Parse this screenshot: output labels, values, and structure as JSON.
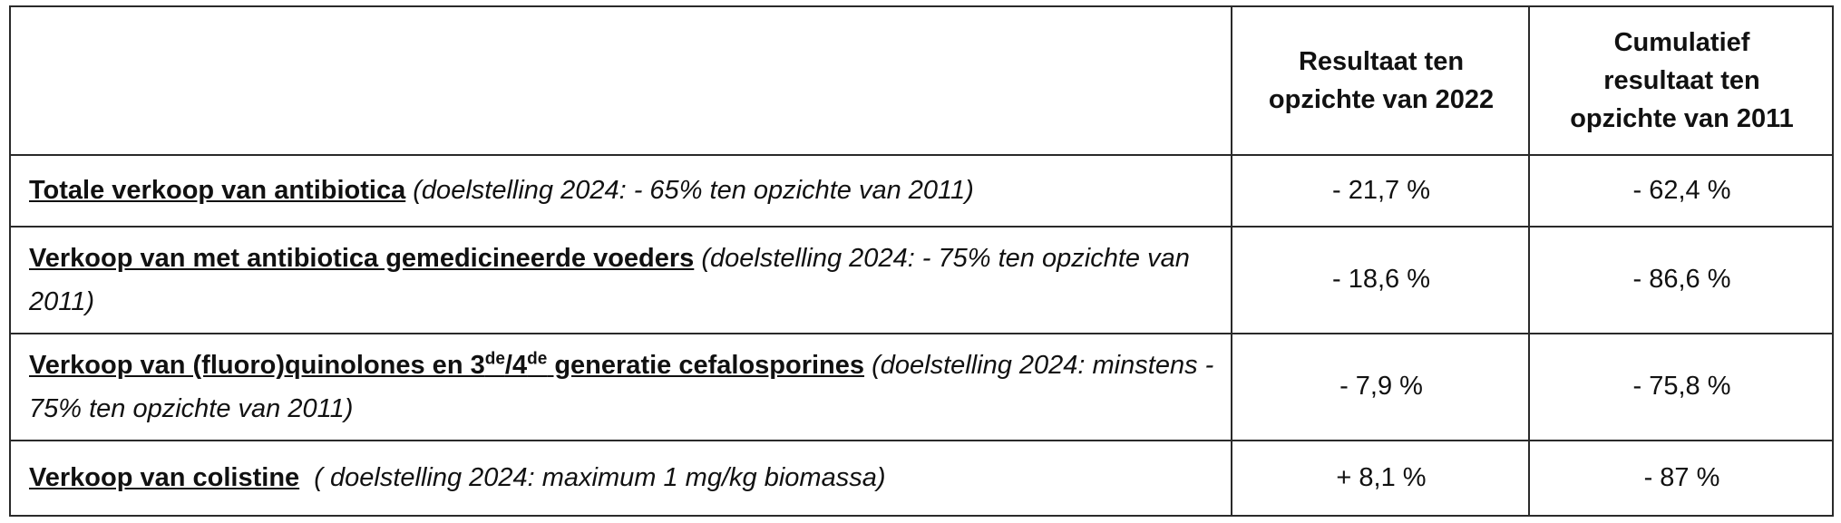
{
  "table": {
    "headers": {
      "col1": "",
      "col2_lines": [
        "Resultaat ten",
        "opzichte van 2022"
      ],
      "col3_lines": [
        "Cumulatief",
        "resultaat ten",
        "opzichte van 2011"
      ]
    },
    "rows": [
      {
        "title": "Totale verkoop van antibiotica",
        "goal": " (doelstelling 2024: - 65% ten opzichte van 2011)",
        "vs_2022": "- 21,7 %",
        "vs_2011": "- 62,4 %"
      },
      {
        "title": "Verkoop van met antibiotica gemedicineerde voeders",
        "goal": " (doelstelling 2024: - 75% ten opzichte van 2011)",
        "vs_2022": "- 18,6 %",
        "vs_2011": "- 86,6 %"
      },
      {
        "title_a": "Verkoop van (fluoro)quinolones en 3",
        "title_sup1": "de",
        "title_b": "/4",
        "title_sup2": "de",
        "title_c": " generatie cefalosporines",
        "goal": " (doelstelling 2024: minstens - 75% ten opzichte van 2011)",
        "vs_2022": "- 7,9 %",
        "vs_2011": "- 75,8 %"
      },
      {
        "title": "Verkoop van colistine",
        "goal": "  ( doelstelling 2024: maximum 1 mg/kg biomassa)",
        "vs_2022": "+ 8,1 %",
        "vs_2011": "- 87 %"
      }
    ]
  }
}
